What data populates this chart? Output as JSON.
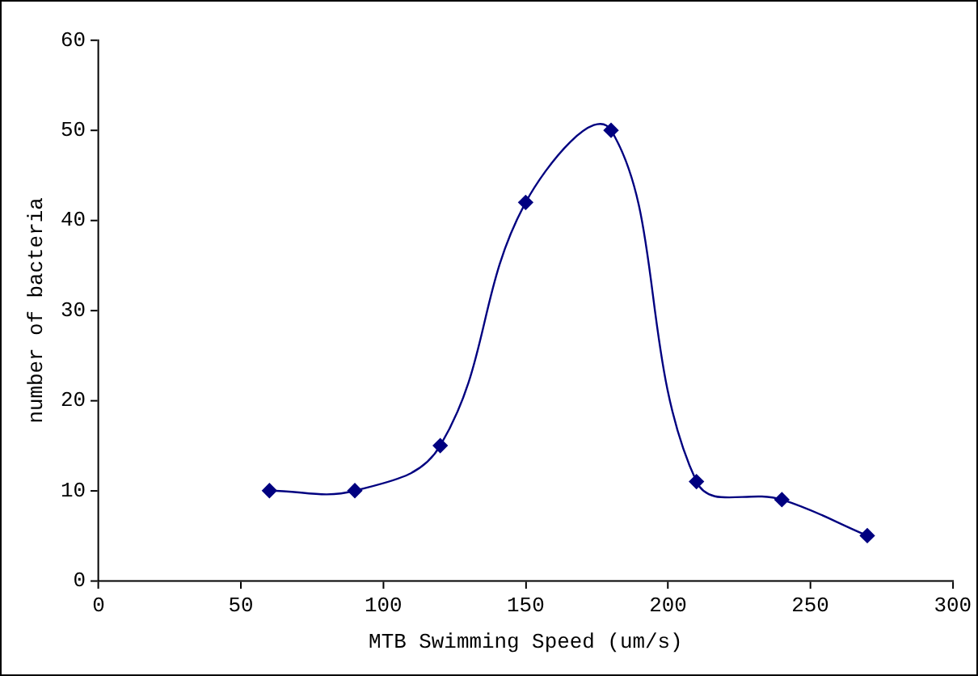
{
  "chart_data": {
    "type": "line",
    "xlabel": "MTB Swimming Speed (um/s)",
    "ylabel": "number of bacteria",
    "x": [
      60,
      90,
      120,
      150,
      180,
      210,
      240,
      270
    ],
    "series": [
      {
        "color": "#000080",
        "values": [
          10,
          10,
          15,
          42,
          50,
          11,
          9,
          5
        ]
      }
    ],
    "xlim": [
      0,
      300
    ],
    "xticks": [
      0,
      50,
      100,
      150,
      200,
      250,
      300
    ],
    "ylim": [
      0,
      60
    ],
    "yticks": [
      0,
      10,
      20,
      30,
      40,
      50,
      60
    ],
    "grid": false,
    "legend": false,
    "marker": "diamond",
    "line_style": "solid"
  }
}
